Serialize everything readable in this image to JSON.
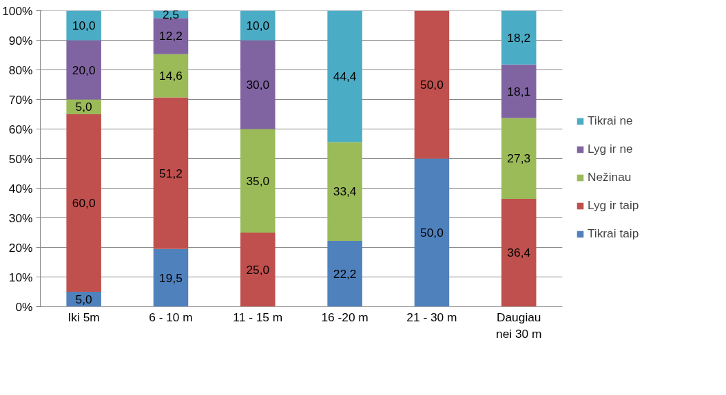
{
  "chart_data": {
    "type": "bar",
    "stacked": true,
    "categories": [
      "Iki 5m",
      "6 - 10 m",
      "11 - 15 m",
      "16 -20 m",
      "21 - 30 m",
      "Daugiau\nnei 30 m"
    ],
    "series": [
      {
        "name": "Tikrai taip",
        "color": "#4f81bd",
        "values": [
          5.0,
          19.5,
          null,
          22.2,
          50.0,
          null
        ],
        "value_labels": [
          "5,0",
          "19,5",
          null,
          "22,2",
          "50,0",
          null
        ]
      },
      {
        "name": "Lyg ir taip",
        "color": "#c0504d",
        "values": [
          60.0,
          51.2,
          25.0,
          null,
          50.0,
          36.4
        ],
        "value_labels": [
          "60,0",
          "51,2",
          "25,0",
          null,
          "50,0",
          "36,4"
        ]
      },
      {
        "name": "Nežinau",
        "color": "#9bbb59",
        "values": [
          5.0,
          14.6,
          35.0,
          33.4,
          null,
          27.3
        ],
        "value_labels": [
          "5,0",
          "14,6",
          "35,0",
          "33,4",
          null,
          "27,3"
        ]
      },
      {
        "name": "Lyg ir ne",
        "color": "#8064a2",
        "values": [
          20.0,
          12.2,
          30.0,
          null,
          null,
          18.1
        ],
        "value_labels": [
          "20,0",
          "12,2",
          "30,0",
          null,
          null,
          "18,1"
        ]
      },
      {
        "name": "Tikrai ne",
        "color": "#4bacc6",
        "values": [
          10.0,
          2.5,
          10.0,
          44.4,
          null,
          18.2
        ],
        "value_labels": [
          "10,0",
          "2,5",
          "10,0",
          "44,4",
          null,
          "18,2"
        ]
      }
    ],
    "ylim": [
      0,
      100
    ],
    "yticks": [
      {
        "value": 0,
        "label": "0%"
      },
      {
        "value": 10,
        "label": "10%"
      },
      {
        "value": 20,
        "label": "20%"
      },
      {
        "value": 30,
        "label": "30%"
      },
      {
        "value": 40,
        "label": "40%"
      },
      {
        "value": 50,
        "label": "50%"
      },
      {
        "value": 60,
        "label": "60%"
      },
      {
        "value": 70,
        "label": "70%"
      },
      {
        "value": 80,
        "label": "80%"
      },
      {
        "value": 90,
        "label": "90%"
      },
      {
        "value": 100,
        "label": "100%"
      }
    ],
    "grid": "y",
    "legend": "right"
  }
}
